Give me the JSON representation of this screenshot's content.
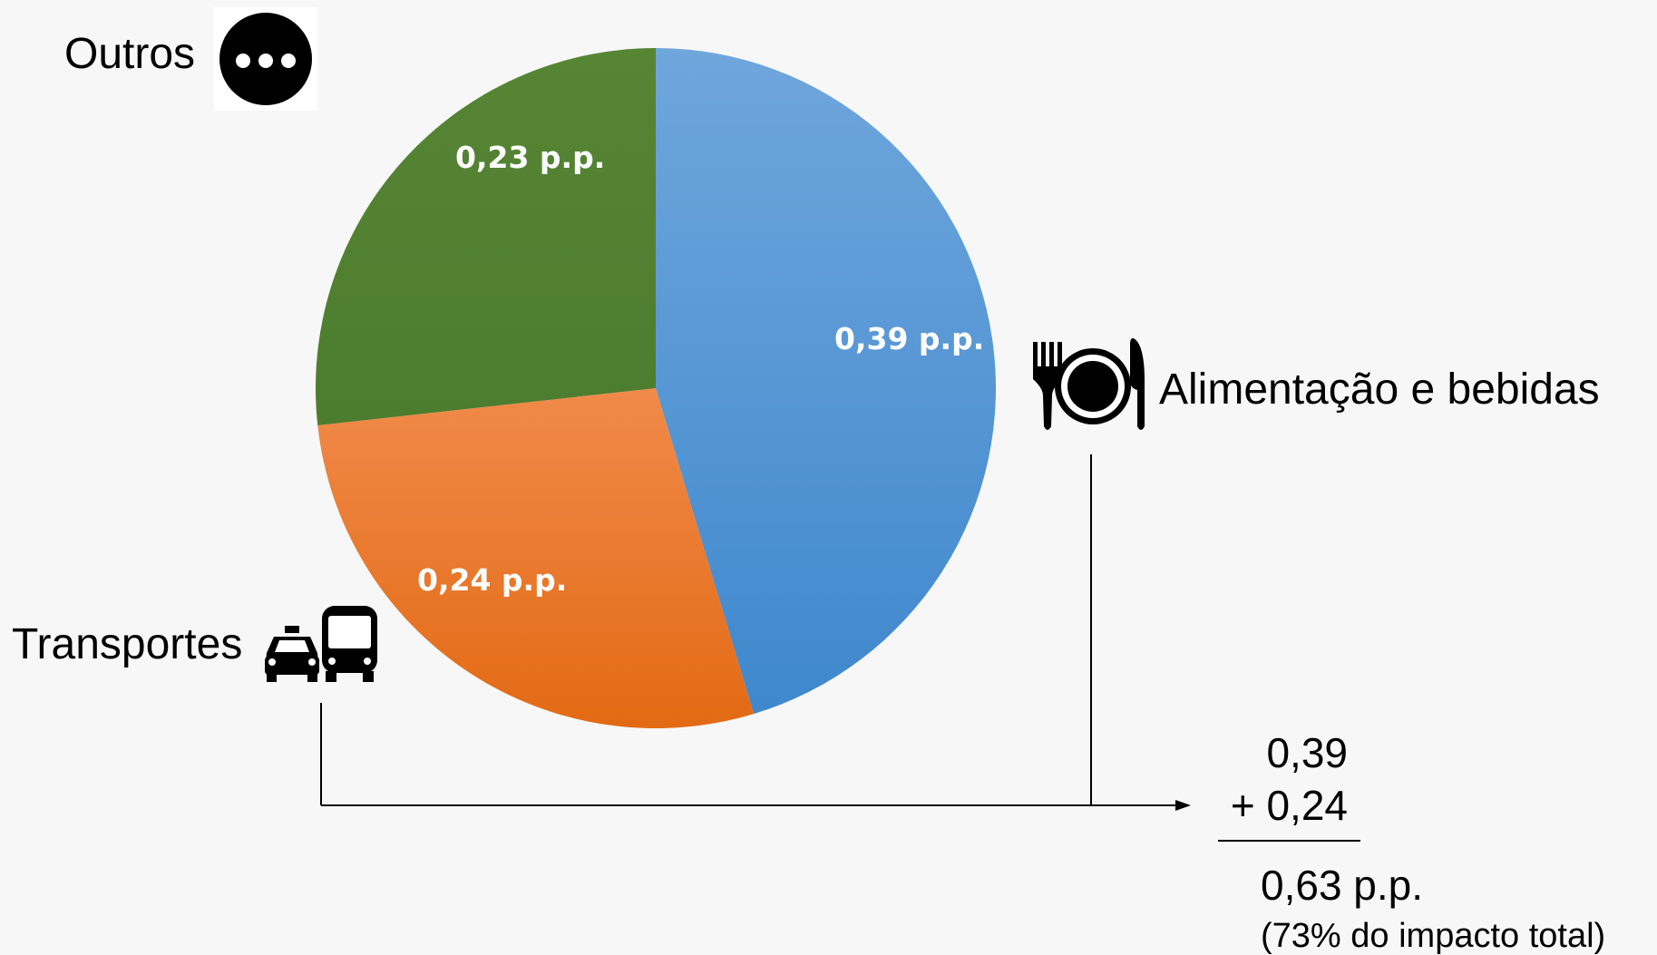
{
  "chart_data": {
    "type": "pie",
    "slices": [
      {
        "category": "Alimentação e bebidas",
        "value": 0.39,
        "label": "0,39 p.p.",
        "color": "#5b9bd5"
      },
      {
        "category": "Transportes",
        "value": 0.24,
        "label": "0,24 p.p.",
        "color": "#ed7d31"
      },
      {
        "category": "Outros",
        "value": 0.23,
        "label": "0,23 p.p.",
        "color": "#548235"
      }
    ],
    "start": "12 o'clock, clockwise"
  },
  "labels": {
    "outros": "Outros",
    "alimentacao": "Alimentação e bebidas",
    "transportes": "Transportes"
  },
  "icons": {
    "outros": "ellipsis-circle-icon",
    "alimentacao": "plate-cutlery-icon",
    "transportes": "car-bus-icon"
  },
  "sum": {
    "line1": "0,39",
    "line2": "+ 0,24",
    "total": "0,63 p.p.",
    "note": "(73% do impacto total)"
  }
}
